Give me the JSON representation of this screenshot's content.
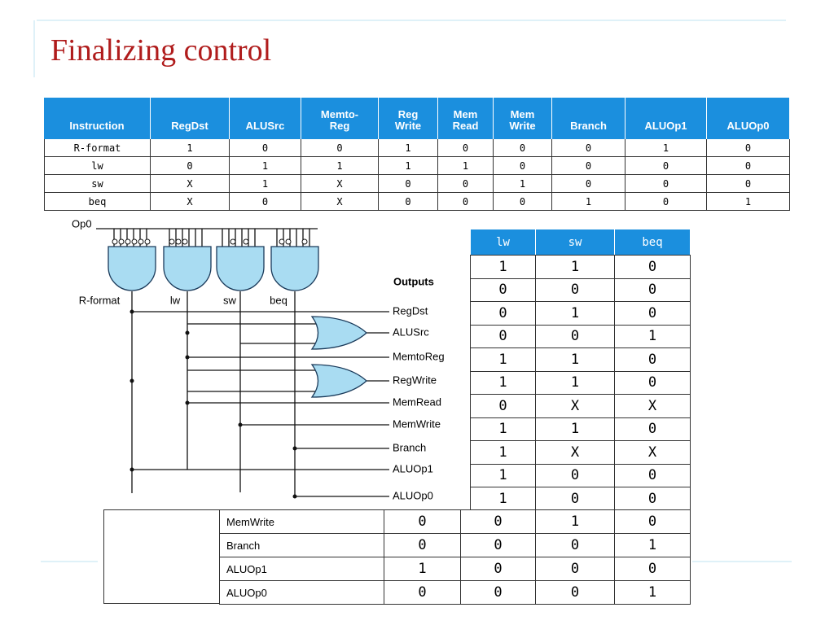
{
  "title": "Finalizing control",
  "top_table": {
    "headers": [
      [
        "Instruction"
      ],
      [
        "RegDst"
      ],
      [
        "ALUSrc"
      ],
      [
        "Memto-",
        "Reg"
      ],
      [
        "Reg",
        "Write"
      ],
      [
        "Mem",
        "Read"
      ],
      [
        "Mem",
        "Write"
      ],
      [
        "Branch"
      ],
      [
        "ALUOp1"
      ],
      [
        "ALUOp0"
      ]
    ],
    "rows": [
      [
        "R-format",
        1,
        0,
        0,
        1,
        0,
        0,
        0,
        1,
        0
      ],
      [
        "lw",
        0,
        1,
        1,
        1,
        1,
        0,
        0,
        0,
        0
      ],
      [
        "sw",
        "X",
        1,
        "X",
        0,
        0,
        1,
        0,
        0,
        0
      ],
      [
        "beq",
        "X",
        0,
        "X",
        0,
        0,
        0,
        1,
        0,
        1
      ]
    ]
  },
  "diagram": {
    "input_label": "Op0",
    "gates": [
      "R-format",
      "lw",
      "sw",
      "beq"
    ],
    "outputs_title": "Outputs",
    "outputs": [
      "RegDst",
      "ALUSrc",
      "MemtoReg",
      "RegWrite",
      "MemRead",
      "MemWrite",
      "Branch",
      "ALUOp1",
      "ALUOp0"
    ]
  },
  "side_table": {
    "headers": [
      "lw",
      "sw",
      "beq"
    ],
    "rows": [
      [
        1,
        1,
        0
      ],
      [
        0,
        0,
        0
      ],
      [
        0,
        1,
        0
      ],
      [
        0,
        0,
        1
      ],
      [
        1,
        1,
        0
      ],
      [
        1,
        1,
        0
      ],
      [
        0,
        "X",
        "X"
      ],
      [
        1,
        1,
        0
      ],
      [
        1,
        "X",
        "X"
      ],
      [
        1,
        0,
        0
      ],
      [
        1,
        0,
        0
      ]
    ]
  },
  "bottom_table": {
    "rows": [
      [
        "MemWrite",
        0,
        0,
        1,
        0
      ],
      [
        "Branch",
        0,
        0,
        0,
        1
      ],
      [
        "ALUOp1",
        1,
        0,
        0,
        0
      ],
      [
        "ALUOp0",
        0,
        0,
        0,
        1
      ]
    ]
  }
}
